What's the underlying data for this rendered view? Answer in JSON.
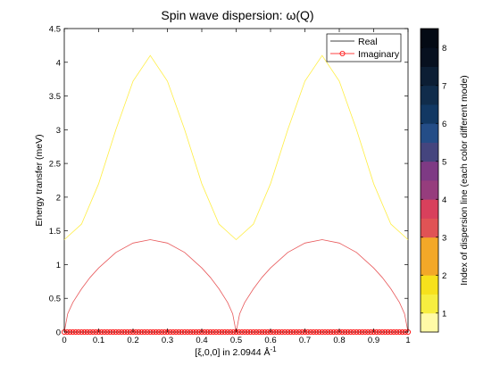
{
  "chart_data": {
    "type": "line",
    "title": "Spin wave dispersion: ω(Q)",
    "xlabel": "[ξ,0,0] in 2.0944 Å",
    "xlabel_sup": "-1",
    "ylabel": "Energy transfer (meV)",
    "xlim": [
      0,
      1
    ],
    "ylim": [
      0,
      4.5
    ],
    "grid": false,
    "legend_position": "top-right",
    "x_ticks": [
      "0",
      "0.1",
      "0.2",
      "0.3",
      "0.4",
      "0.5",
      "0.6",
      "0.7",
      "0.8",
      "0.9",
      "1"
    ],
    "y_ticks": [
      "0",
      "0.5",
      "1",
      "1.5",
      "2",
      "2.5",
      "3",
      "3.5",
      "4",
      "4.5"
    ],
    "legend": [
      {
        "label": "Real",
        "color": "#000000",
        "marker": "none"
      },
      {
        "label": "Imaginary",
        "color": "#ff0000",
        "marker": "circle"
      }
    ],
    "series": [
      {
        "color": "#ffee44",
        "style": "line",
        "x": [
          0,
          0.05,
          0.1,
          0.15,
          0.2,
          0.25,
          0.3,
          0.35,
          0.4,
          0.45,
          0.5,
          0.55,
          0.6,
          0.65,
          0.7,
          0.75,
          0.8,
          0.85,
          0.9,
          0.95,
          1
        ],
        "values": [
          1.37,
          1.6,
          2.2,
          3.0,
          3.72,
          4.1,
          3.72,
          3.0,
          2.2,
          1.6,
          1.37,
          1.6,
          2.2,
          3.0,
          3.72,
          4.1,
          3.72,
          3.0,
          2.2,
          1.6,
          1.37
        ]
      },
      {
        "color": "#e8585a",
        "style": "line",
        "x": [
          0,
          0.01,
          0.025,
          0.05,
          0.075,
          0.1,
          0.15,
          0.2,
          0.25,
          0.3,
          0.35,
          0.4,
          0.425,
          0.45,
          0.475,
          0.49,
          0.5,
          0.51,
          0.525,
          0.55,
          0.575,
          0.6,
          0.65,
          0.7,
          0.75,
          0.8,
          0.85,
          0.9,
          0.925,
          0.95,
          0.975,
          0.99,
          1
        ],
        "values": [
          0,
          0.27,
          0.44,
          0.64,
          0.81,
          0.95,
          1.18,
          1.32,
          1.37,
          1.32,
          1.18,
          0.95,
          0.81,
          0.64,
          0.44,
          0.27,
          0,
          0.27,
          0.44,
          0.64,
          0.81,
          0.95,
          1.18,
          1.32,
          1.37,
          1.32,
          1.18,
          0.95,
          0.81,
          0.64,
          0.44,
          0.27,
          0
        ]
      },
      {
        "color": "#ff0000",
        "style": "markers",
        "marker": "circle",
        "x_range": [
          0,
          1
        ],
        "value": 0
      }
    ],
    "colorbar": {
      "label": "Index of dispersion line (each color different mode)",
      "range": [
        0.5,
        8.5
      ],
      "ticks": [
        "1",
        "2",
        "3",
        "4",
        "5",
        "6",
        "7",
        "8"
      ],
      "colors": [
        "#fffaa6",
        "#f7ee40",
        "#f7e11c",
        "#f3a828",
        "#f3a828",
        "#e05355",
        "#d8405c",
        "#963d7d",
        "#7e3a84",
        "#45457e",
        "#244d87",
        "#123863",
        "#102c4b",
        "#0c1e34",
        "#07101f",
        "#040a14"
      ]
    }
  }
}
